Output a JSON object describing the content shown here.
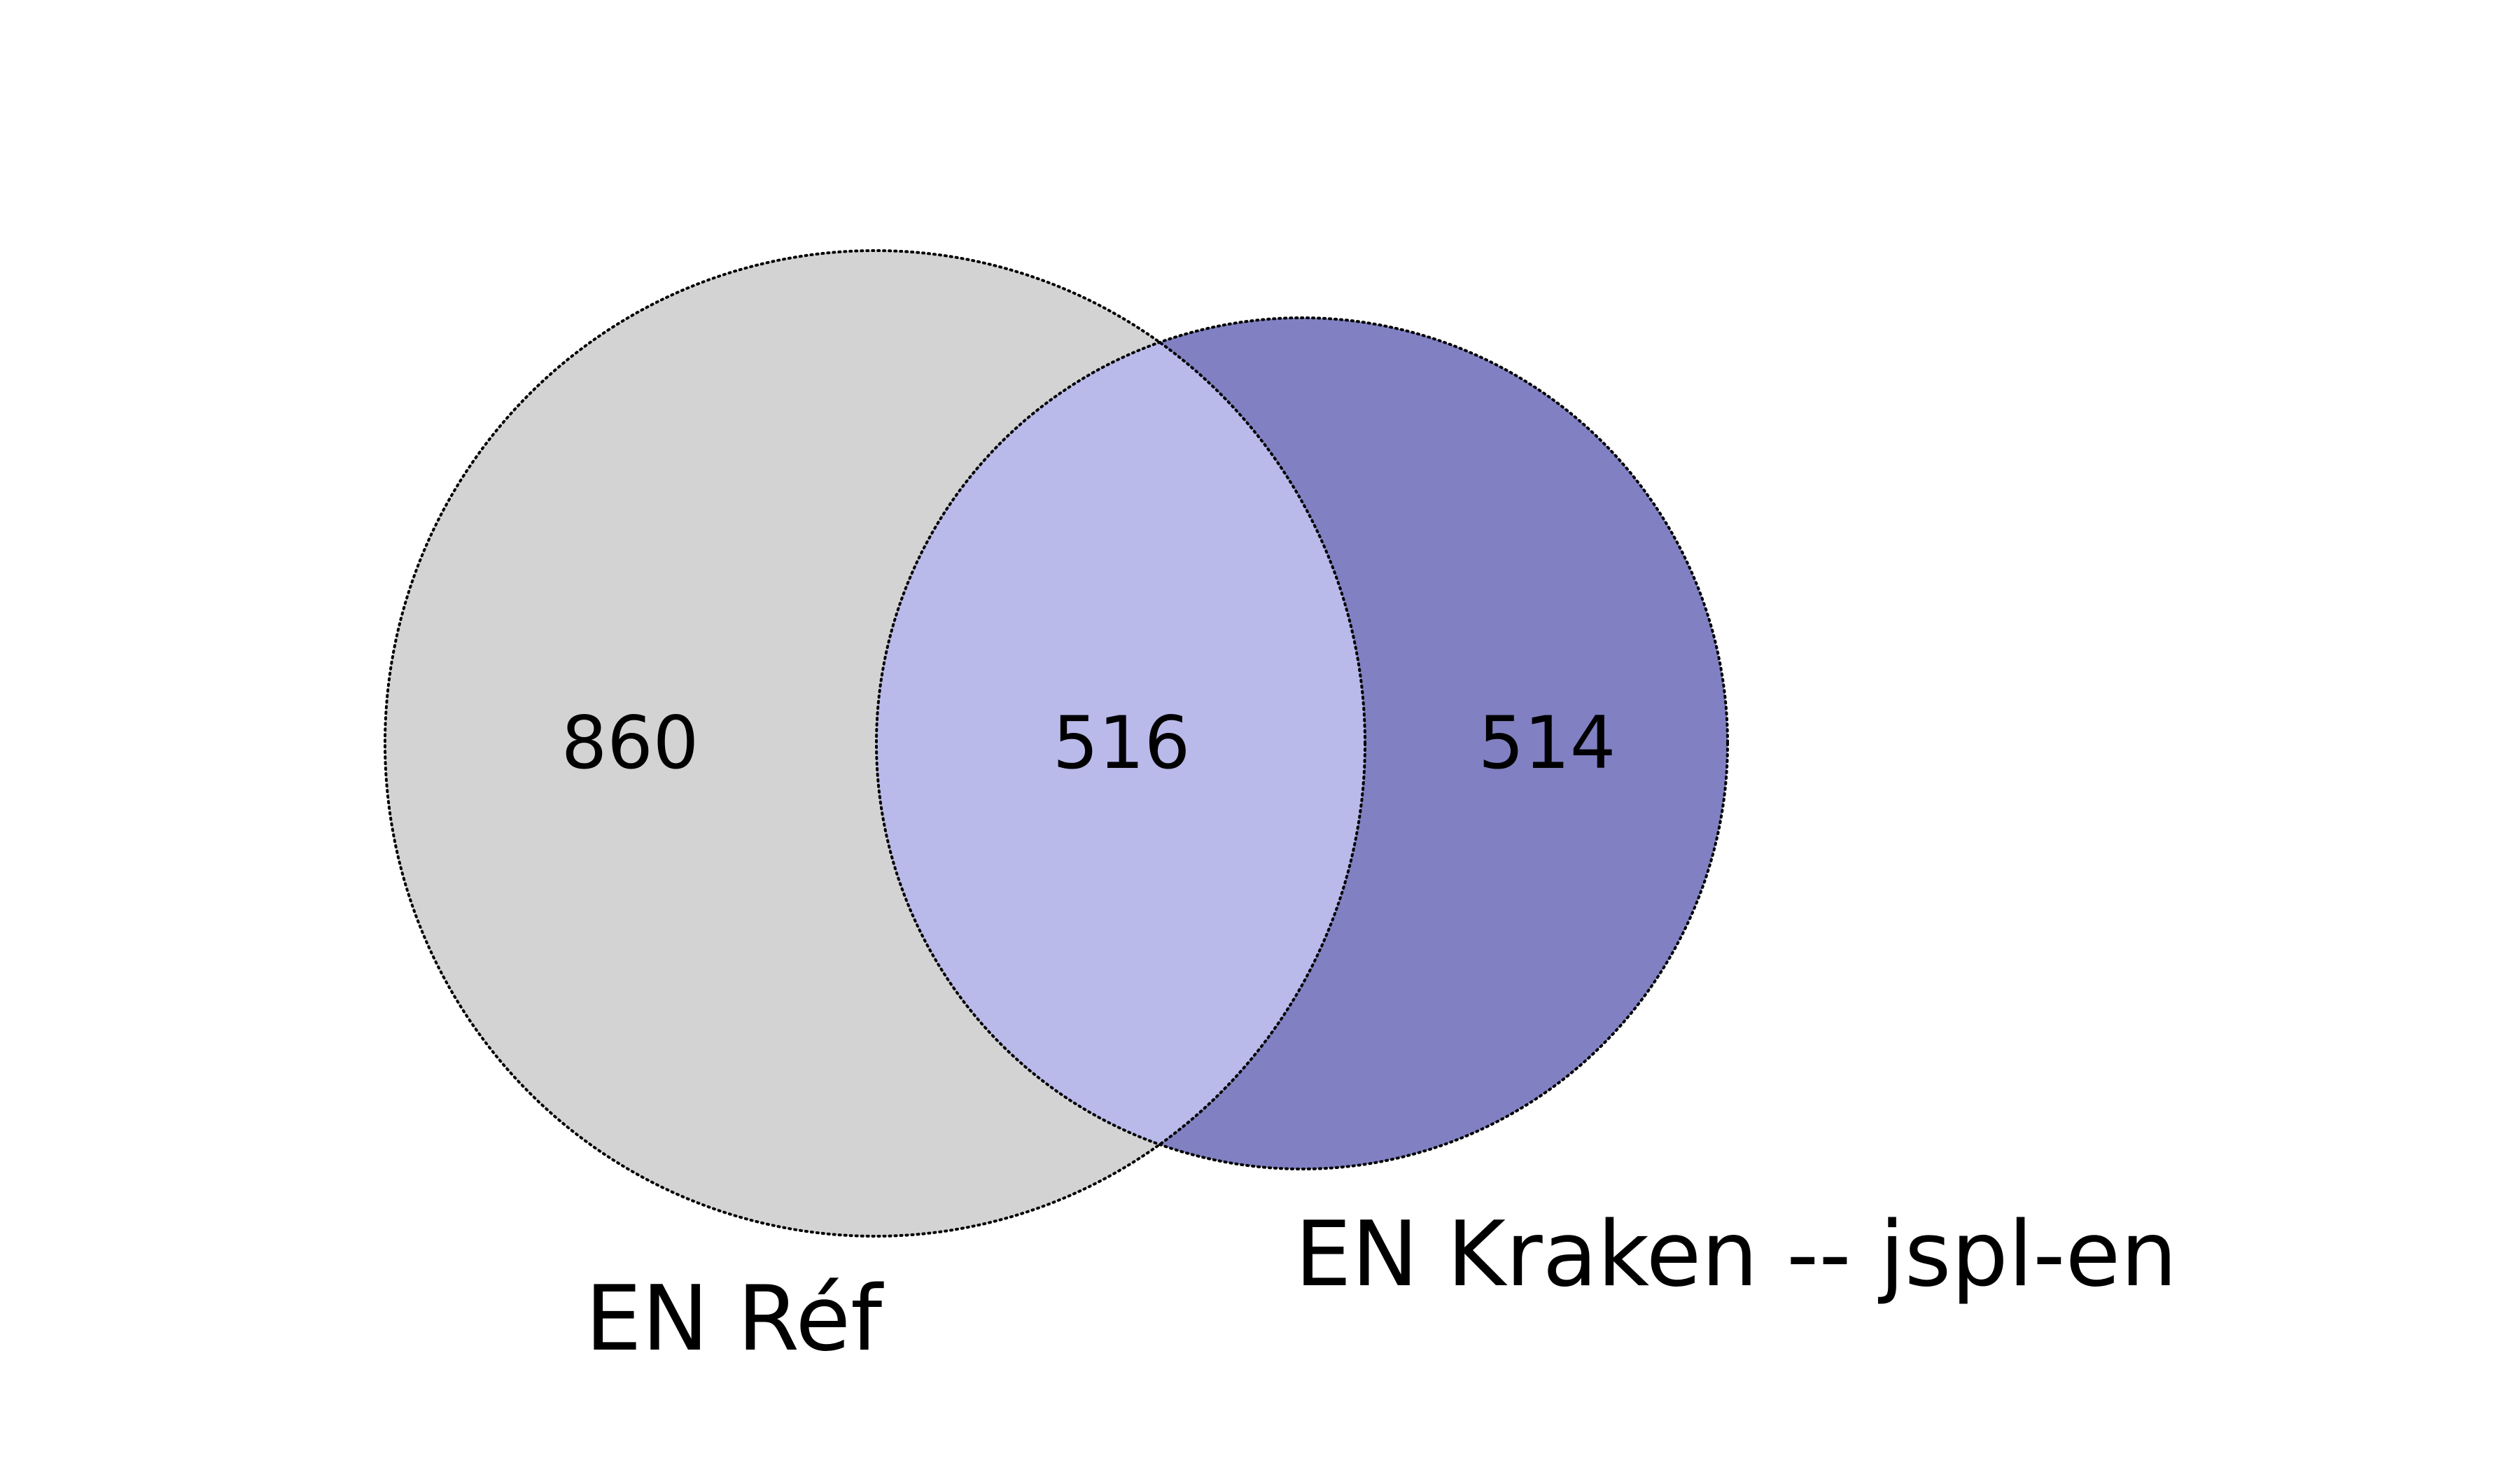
{
  "diagram": {
    "type": "venn2",
    "colors": {
      "set_a_only": "#d3d3d3",
      "set_b_only": "#8080c2",
      "intersection": "#b9b9ea",
      "outline": "#000000",
      "background": "#ffffff"
    },
    "sets": [
      {
        "label": "EN Réf"
      },
      {
        "label": "EN Kraken -- jspl-en"
      }
    ],
    "regions": {
      "a_only": "860",
      "intersection": "516",
      "b_only": "514"
    }
  }
}
